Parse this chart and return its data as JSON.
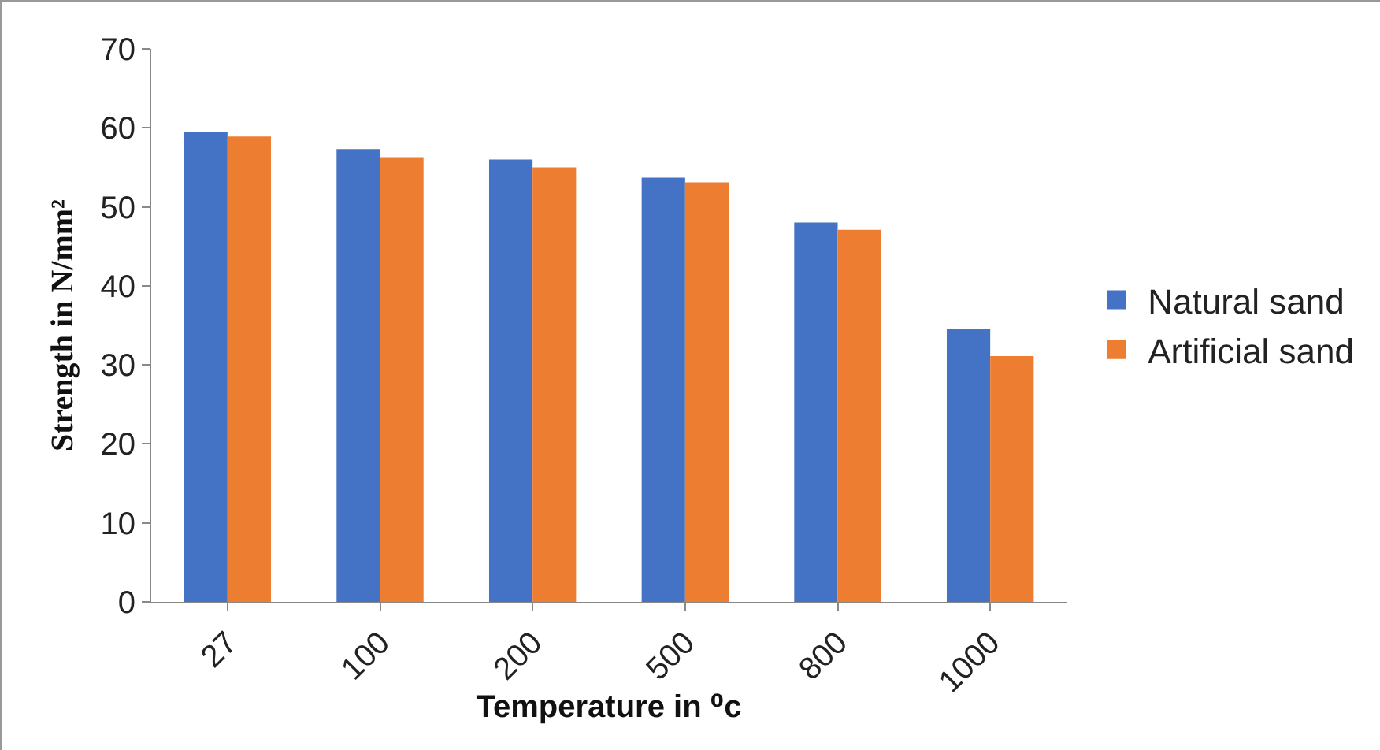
{
  "chart_data": {
    "type": "bar",
    "xlabel": "Temperature in ⁰c",
    "ylabel": "Strength in N/mm²",
    "categories": [
      "27",
      "100",
      "200",
      "500",
      "800",
      "1000"
    ],
    "series": [
      {
        "name": "Natural sand",
        "color": "#4472c4",
        "values": [
          59.5,
          57.3,
          56.0,
          53.7,
          48.0,
          34.6
        ]
      },
      {
        "name": "Artificial sand",
        "color": "#ed7d31",
        "values": [
          58.9,
          56.3,
          55.0,
          53.1,
          47.1,
          31.1
        ]
      }
    ],
    "ylim": [
      0,
      70
    ],
    "yticks": [
      0,
      10,
      20,
      30,
      40,
      50,
      60,
      70
    ],
    "grid": false,
    "legend": "right"
  }
}
